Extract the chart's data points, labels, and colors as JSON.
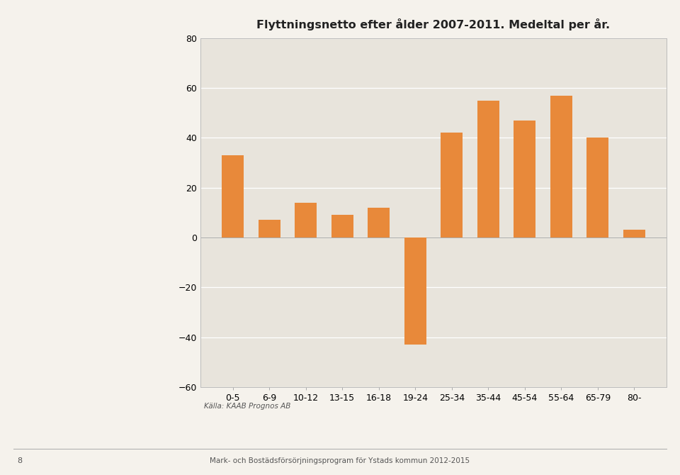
{
  "title": "Flyttningsnetto efter ålder 2007-2011. Medeltal per år.",
  "categories": [
    "0-5",
    "6-9",
    "10-12",
    "13-15",
    "16-18",
    "19-24",
    "25-34",
    "35-44",
    "45-54",
    "55-64",
    "65-79",
    "80-"
  ],
  "values": [
    33,
    7,
    14,
    9,
    12,
    -43,
    42,
    55,
    47,
    57,
    40,
    3
  ],
  "bar_color": "#E8893A",
  "page_bg_color": "#F5F2EC",
  "chart_bg_color": "#E8E4DC",
  "ylim": [
    -60,
    80
  ],
  "yticks": [
    -60,
    -40,
    -20,
    0,
    20,
    40,
    60,
    80
  ],
  "source_text": "Källa: KAAB Prognos AB",
  "title_fontsize": 11.5,
  "tick_fontsize": 9,
  "source_fontsize": 7.5,
  "footer_text": "Mark- och Bostädsförsörjningsprogram för Ystads kommun 2012-2015",
  "page_num": "8",
  "chart_border_color": "#BBBBBB"
}
